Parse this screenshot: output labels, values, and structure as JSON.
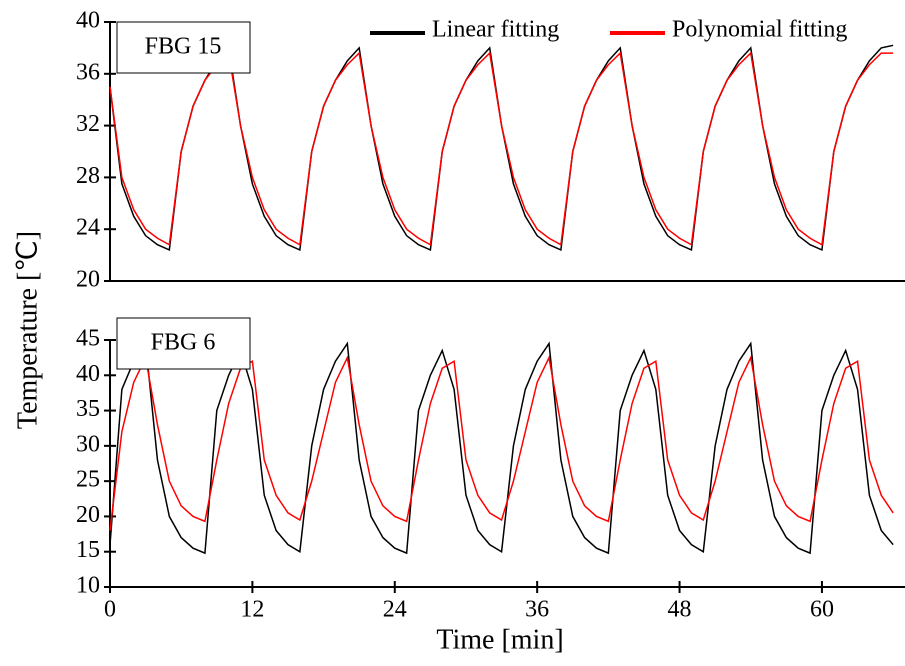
{
  "chart_data": [
    {
      "type": "line",
      "label": "FBG 15",
      "ylabel": "Temperature [℃]",
      "xlim": [
        0,
        67
      ],
      "ylim": [
        20,
        40
      ],
      "yticks": [
        20,
        24,
        28,
        32,
        36,
        40
      ],
      "legend": "top-right",
      "x": [
        0,
        1,
        2,
        3,
        4,
        5,
        6,
        7,
        8,
        9,
        10,
        11,
        12,
        13,
        14,
        15,
        16,
        17,
        18,
        19,
        20,
        21,
        22,
        23,
        24,
        25,
        26,
        27,
        28,
        29,
        30,
        31,
        32,
        33,
        34,
        35,
        36,
        37,
        38,
        39,
        40,
        41,
        42,
        43,
        44,
        45,
        46,
        47,
        48,
        49,
        50,
        51,
        52,
        53,
        54,
        55,
        56,
        57,
        58,
        59,
        60,
        61,
        62,
        63,
        64,
        65,
        66
      ],
      "series": [
        {
          "name": "Linear fitting",
          "color": "#000000",
          "values": [
            35,
            27.5,
            25,
            23.5,
            22.8,
            22.4,
            30,
            33.5,
            35.5,
            37,
            38,
            32,
            27.5,
            25,
            23.5,
            22.8,
            22.4,
            30,
            33.5,
            35.5,
            37,
            38,
            32,
            27.5,
            25,
            23.5,
            22.8,
            22.4,
            30,
            33.5,
            35.5,
            37,
            38,
            32,
            27.5,
            25,
            23.5,
            22.8,
            22.4,
            30,
            33.5,
            35.5,
            37,
            38,
            32,
            27.5,
            25,
            23.5,
            22.8,
            22.4,
            30,
            33.5,
            35.5,
            37,
            38,
            32,
            27.5,
            25,
            23.5,
            22.8,
            22.4,
            30,
            33.5,
            35.5,
            37,
            38,
            38.2
          ]
        },
        {
          "name": "Polynomial fitting",
          "color": "#ff0000",
          "values": [
            35,
            28,
            25.5,
            24,
            23.3,
            22.8,
            30,
            33.5,
            35.5,
            36.7,
            37.6,
            32,
            28,
            25.5,
            24,
            23.3,
            22.8,
            30,
            33.5,
            35.5,
            36.7,
            37.6,
            32,
            28,
            25.5,
            24,
            23.3,
            22.8,
            30,
            33.5,
            35.5,
            36.7,
            37.6,
            32,
            28,
            25.5,
            24,
            23.3,
            22.8,
            30,
            33.5,
            35.5,
            36.7,
            37.6,
            32,
            28,
            25.5,
            24,
            23.3,
            22.8,
            30,
            33.5,
            35.5,
            36.7,
            37.6,
            32,
            28,
            25.5,
            24,
            23.3,
            22.8,
            30,
            33.5,
            35.5,
            36.7,
            37.6,
            37.6
          ]
        }
      ]
    },
    {
      "type": "line",
      "label": "FBG 6",
      "xlabel": "Time [min]",
      "xlim": [
        0,
        67
      ],
      "xticks": [
        0,
        12,
        24,
        36,
        48,
        60
      ],
      "ylim": [
        10,
        45
      ],
      "yticks": [
        10,
        15,
        20,
        25,
        30,
        35,
        40,
        45
      ],
      "x": [
        0,
        1,
        2,
        3,
        4,
        5,
        6,
        7,
        8,
        9,
        10,
        11,
        12,
        13,
        14,
        15,
        16,
        17,
        18,
        19,
        20,
        21,
        22,
        23,
        24,
        25,
        26,
        27,
        28,
        29,
        30,
        31,
        32,
        33,
        34,
        35,
        36,
        37,
        38,
        39,
        40,
        41,
        42,
        43,
        44,
        45,
        46,
        47,
        48,
        49,
        50,
        51,
        52,
        53,
        54,
        55,
        56,
        57,
        58,
        59,
        60,
        61,
        62,
        63,
        64,
        65,
        66
      ],
      "series": [
        {
          "color": "#000000",
          "values": [
            16,
            38,
            42,
            44.5,
            28,
            20,
            17,
            15.5,
            14.8,
            35,
            40,
            43.5,
            38,
            23,
            18,
            16,
            15,
            30,
            38,
            42,
            44.5,
            28,
            20,
            17,
            15.5,
            14.8,
            35,
            40,
            43.5,
            38,
            23,
            18,
            16,
            15,
            30,
            38,
            42,
            44.5,
            28,
            20,
            17,
            15.5,
            14.8,
            35,
            40,
            43.5,
            38,
            23,
            18,
            16,
            15,
            30,
            38,
            42,
            44.5,
            28,
            20,
            17,
            15.5,
            14.8,
            35,
            40,
            43.5,
            38,
            23,
            18,
            16
          ]
        },
        {
          "color": "#ff0000",
          "values": [
            18,
            32,
            39,
            42.5,
            33,
            25,
            21.5,
            20,
            19.3,
            28,
            36,
            41,
            42,
            28,
            23,
            20.5,
            19.5,
            25,
            32,
            39,
            42.5,
            33,
            25,
            21.5,
            20,
            19.3,
            28,
            36,
            41,
            42,
            28,
            23,
            20.5,
            19.5,
            25,
            32,
            39,
            42.5,
            33,
            25,
            21.5,
            20,
            19.3,
            28,
            36,
            41,
            42,
            28,
            23,
            20.5,
            19.5,
            25,
            32,
            39,
            42.5,
            33,
            25,
            21.5,
            20,
            19.3,
            28,
            36,
            41,
            42,
            28,
            23,
            20.5
          ]
        }
      ]
    }
  ]
}
